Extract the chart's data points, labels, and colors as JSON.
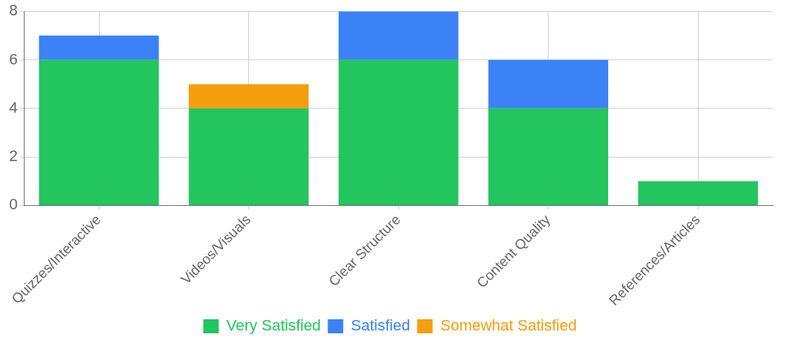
{
  "chart_data": {
    "type": "bar",
    "stacked": true,
    "categories": [
      "Quizzes/Interactive",
      "Videos/Visuals",
      "Clear Structure",
      "Content Quality",
      "References/Articles"
    ],
    "series": [
      {
        "name": "Very Satisfied",
        "color": "#22c55e",
        "values": [
          6,
          4,
          6,
          4,
          1
        ]
      },
      {
        "name": "Satisfied",
        "color": "#3b82f6",
        "values": [
          1,
          0,
          2,
          2,
          0
        ]
      },
      {
        "name": "Somewhat Satisfied",
        "color": "#f59e0b",
        "values": [
          0,
          1,
          0,
          0,
          0
        ]
      }
    ],
    "ylim": [
      0,
      8
    ],
    "yticks": [
      0,
      2,
      4,
      6,
      8
    ],
    "grid": true,
    "legend": "bottom"
  }
}
